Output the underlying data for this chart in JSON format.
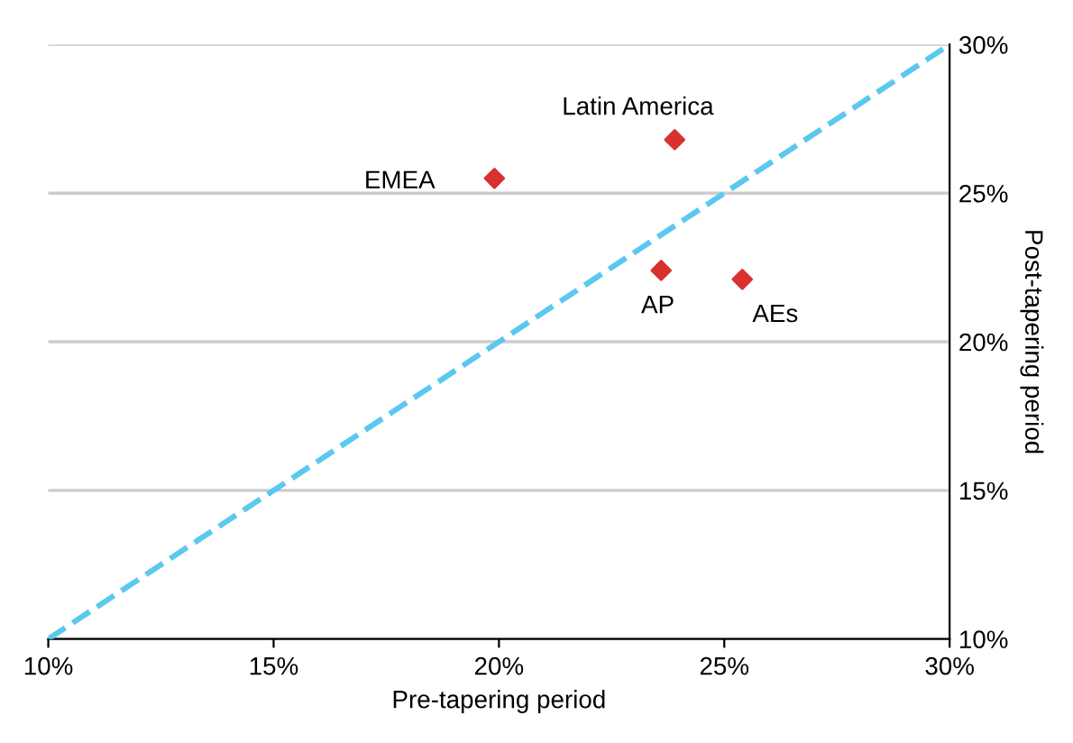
{
  "chart_data": {
    "type": "scatter",
    "xlabel": "Pre-tapering period",
    "ylabel": "Post-tapering period",
    "xlim": [
      10,
      30
    ],
    "ylim": [
      10,
      30
    ],
    "xticks": [
      {
        "value": 10,
        "label": "10%"
      },
      {
        "value": 15,
        "label": "15%"
      },
      {
        "value": 20,
        "label": "20%"
      },
      {
        "value": 25,
        "label": "25%"
      },
      {
        "value": 30,
        "label": "30%"
      }
    ],
    "yticks": [
      {
        "value": 10,
        "label": "10%"
      },
      {
        "value": 15,
        "label": "15%"
      },
      {
        "value": 20,
        "label": "20%"
      },
      {
        "value": 25,
        "label": "25%"
      },
      {
        "value": 30,
        "label": "30%"
      }
    ],
    "grid": "y",
    "marker": "diamond",
    "series": [
      {
        "color": "#d9312f",
        "x": [
          19.9,
          23.9,
          23.6,
          25.4
        ],
        "values": [
          25.5,
          26.8,
          22.4,
          22.1
        ]
      },
      {
        "type": "line",
        "color": "#5bc8ef",
        "line_style": "dashed",
        "marker": "none",
        "x": [
          10,
          30
        ],
        "values": [
          10,
          30
        ]
      }
    ],
    "annotations": [
      {
        "text": "EMEA",
        "x": 19.9,
        "y": 25.5
      },
      {
        "text": "Latin America",
        "x": 23.9,
        "y": 26.8
      },
      {
        "text": "AP",
        "x": 23.6,
        "y": 22.4
      },
      {
        "text": "AEs",
        "x": 25.4,
        "y": 22.1
      }
    ]
  }
}
